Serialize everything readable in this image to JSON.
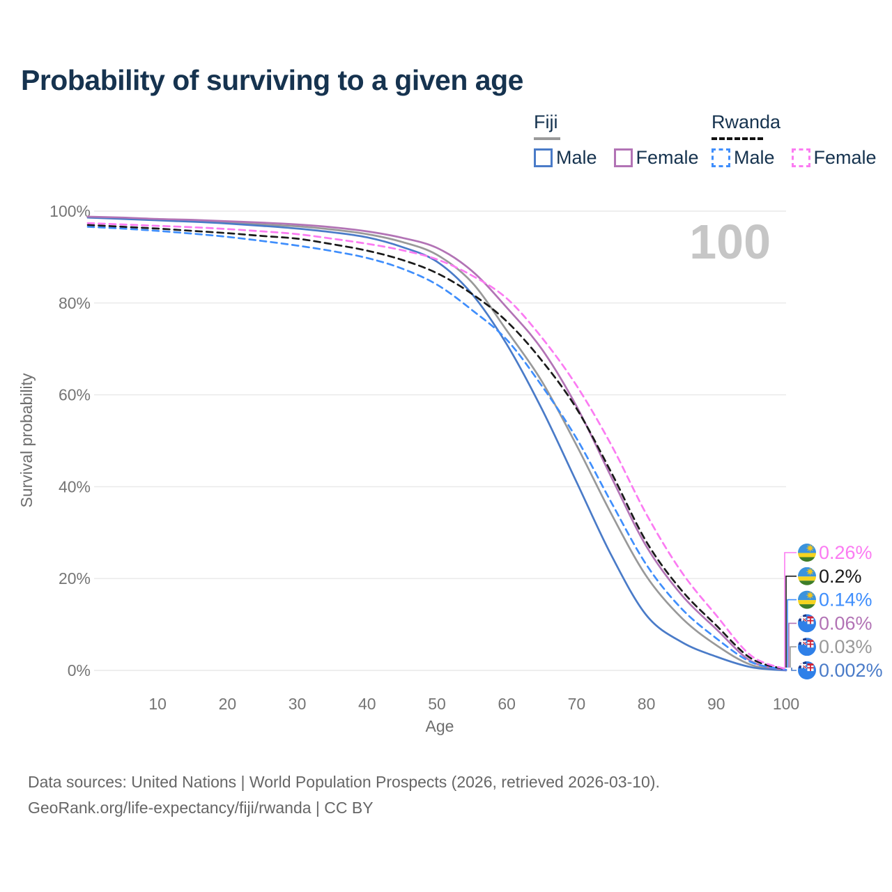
{
  "title": "Probability of surviving to a given age",
  "watermark": "100",
  "legend": {
    "groups": [
      {
        "label": "Fiji",
        "line_color": "#9a9a9a",
        "dashed": false,
        "items": [
          {
            "label": "Male",
            "color": "#4a7bc8",
            "dashed": false
          },
          {
            "label": "Female",
            "color": "#b273b5",
            "dashed": false
          }
        ]
      },
      {
        "label": "Rwanda",
        "line_color": "#111111",
        "dashed": true,
        "items": [
          {
            "label": "Male",
            "color": "#3f8efc",
            "dashed": true
          },
          {
            "label": "Female",
            "color": "#fb7bf2",
            "dashed": true
          }
        ]
      }
    ]
  },
  "chart_data": {
    "type": "line",
    "title": "Probability of surviving to a given age",
    "xlabel": "Age",
    "ylabel": "Survival probability",
    "xlim": [
      0,
      100
    ],
    "ylim": [
      0,
      100
    ],
    "grid": "horizontal",
    "legend_position": "top-right",
    "x_ticks": [
      10,
      20,
      30,
      40,
      50,
      60,
      70,
      80,
      90,
      100
    ],
    "y_ticks": [
      0,
      20,
      40,
      60,
      80,
      100
    ],
    "y_tick_labels": [
      "0%",
      "20%",
      "40%",
      "60%",
      "80%",
      "100%"
    ],
    "x": [
      0,
      5,
      10,
      15,
      20,
      25,
      30,
      35,
      40,
      45,
      50,
      55,
      60,
      65,
      70,
      75,
      80,
      85,
      90,
      95,
      100
    ],
    "series": [
      {
        "name": "Fiji",
        "flag": "fiji",
        "color": "#999999",
        "dashed": false,
        "end_label": "0.03%",
        "values": [
          98.7,
          98.4,
          98.1,
          97.8,
          97.5,
          97.1,
          96.7,
          96.0,
          95.0,
          93.3,
          90.5,
          84.5,
          74.0,
          63.0,
          49.0,
          34.0,
          20.5,
          11.5,
          5.5,
          1.2,
          0.03
        ]
      },
      {
        "name": "Fiji Male",
        "flag": "fiji",
        "color": "#4a7bc8",
        "dashed": false,
        "end_label": "0.002%",
        "values": [
          98.6,
          98.3,
          98.0,
          97.7,
          97.3,
          96.8,
          96.2,
          95.4,
          94.3,
          92.2,
          89.0,
          82.0,
          71.0,
          57.0,
          41.0,
          25.0,
          12.0,
          6.2,
          3.0,
          0.7,
          0.002
        ]
      },
      {
        "name": "Fiji Female",
        "flag": "fiji",
        "color": "#b273b5",
        "dashed": false,
        "end_label": "0.06%",
        "values": [
          98.8,
          98.6,
          98.3,
          98.1,
          97.8,
          97.5,
          97.1,
          96.5,
          95.6,
          94.2,
          92.0,
          87.0,
          79.0,
          70.0,
          57.5,
          42.0,
          27.0,
          16.5,
          9.0,
          2.0,
          0.06
        ]
      },
      {
        "name": "Rwanda Male",
        "flag": "rwanda",
        "color": "#3f8efc",
        "dashed": true,
        "end_label": "0.14%",
        "values": [
          96.6,
          96.2,
          95.7,
          95.1,
          94.4,
          93.5,
          92.5,
          91.3,
          89.8,
          87.5,
          84.0,
          78.5,
          72.0,
          62.0,
          50.5,
          36.5,
          23.0,
          13.5,
          7.0,
          1.8,
          0.14
        ]
      },
      {
        "name": "Rwanda",
        "flag": "rwanda",
        "color": "#1a1a1a",
        "dashed": true,
        "end_label": "0.2%",
        "values": [
          97.0,
          96.6,
          96.2,
          95.7,
          95.2,
          94.6,
          94.0,
          92.8,
          91.4,
          89.4,
          86.5,
          82.0,
          76.0,
          67.5,
          57.0,
          43.0,
          28.0,
          17.5,
          9.8,
          2.6,
          0.2
        ]
      },
      {
        "name": "Rwanda Female",
        "flag": "rwanda",
        "color": "#fb7bf2",
        "dashed": true,
        "end_label": "0.26%",
        "values": [
          97.4,
          97.1,
          96.8,
          96.5,
          96.1,
          95.6,
          95.0,
          94.0,
          92.9,
          91.5,
          89.5,
          86.0,
          81.0,
          72.5,
          62.0,
          49.0,
          34.0,
          21.5,
          12.0,
          3.2,
          0.26
        ]
      }
    ]
  },
  "footer": {
    "line1": "Data sources: United Nations | World Population Prospects (2026, retrieved 2026-03-10).",
    "line2": "GeoRank.org/life-expectancy/fiji/rwanda | CC BY"
  }
}
